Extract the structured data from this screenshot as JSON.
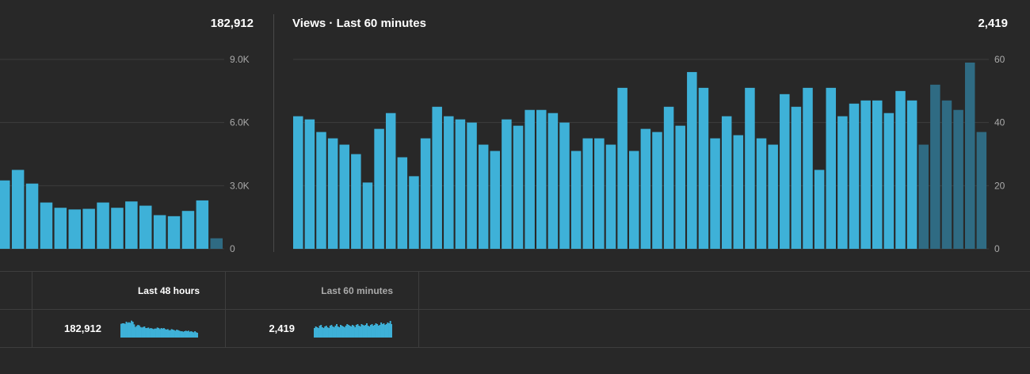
{
  "charts": {
    "left": {
      "total": "182,912"
    },
    "right": {
      "title": "Views · Last 60 minutes",
      "total": "2,419"
    }
  },
  "table": {
    "tabs": [
      {
        "label": "Last 48 hours",
        "active": true
      },
      {
        "label": "Last 60 minutes",
        "active": false
      }
    ],
    "row": {
      "values": [
        "182,912",
        "2,419"
      ]
    }
  },
  "colors": {
    "bar": "#3eb1d8",
    "bar_dim": "#2f6b83",
    "grid": "#3c3c3c",
    "tick": "#aaaaaa",
    "background": "#282828"
  },
  "chart_data": [
    {
      "type": "bar",
      "title": "",
      "ylim": [
        0,
        9000
      ],
      "yticks": [
        "9.0K",
        "6.0K",
        "3.0K",
        "0"
      ],
      "grid": true,
      "values": [
        3250,
        3750,
        3100,
        2200,
        1950,
        1870,
        1900,
        2200,
        1950,
        2250,
        2050,
        1600,
        1550,
        1800,
        2300,
        500
      ],
      "highlight_last": 1
    },
    {
      "type": "bar",
      "title": "Views · Last 60 minutes",
      "ylim": [
        0,
        60
      ],
      "yticks": [
        "60",
        "40",
        "20",
        "0"
      ],
      "grid": true,
      "values": [
        42,
        41,
        37,
        35,
        33,
        30,
        21,
        38,
        43,
        29,
        23,
        35,
        45,
        42,
        41,
        40,
        33,
        31,
        41,
        39,
        44,
        44,
        43,
        40,
        31,
        35,
        35,
        33,
        51,
        31,
        38,
        37,
        45,
        39,
        56,
        51,
        35,
        42,
        36,
        51,
        35,
        33,
        49,
        45,
        51,
        25,
        51,
        42,
        46,
        47,
        47,
        43,
        50,
        47,
        33,
        52,
        47,
        44,
        59,
        37
      ],
      "highlight_last": 6
    },
    {
      "type": "bar",
      "values": [
        26,
        27,
        27,
        26,
        30,
        28,
        29,
        28,
        32,
        30,
        25,
        20,
        22,
        24,
        23,
        20,
        19,
        20,
        21,
        18,
        18,
        19,
        17,
        18,
        17,
        16,
        17,
        17,
        19,
        18,
        16,
        18,
        17,
        18,
        16,
        15,
        16,
        14,
        14,
        16,
        15,
        14,
        13,
        15,
        14,
        13,
        12,
        12,
        11,
        12,
        13,
        12,
        13,
        11,
        12,
        11,
        10,
        12,
        10,
        9
      ]
    },
    {
      "type": "bar",
      "values": [
        12,
        14,
        13,
        12,
        15,
        16,
        13,
        12,
        14,
        15,
        13,
        12,
        15,
        16,
        14,
        13,
        15,
        17,
        14,
        13,
        16,
        15,
        14,
        13,
        15,
        17,
        16,
        15,
        14,
        16,
        15,
        13,
        16,
        17,
        15,
        14,
        17,
        16,
        15,
        16,
        18,
        15,
        14,
        16,
        17,
        15,
        16,
        18,
        17,
        15,
        16,
        19,
        17,
        18,
        16,
        17,
        19,
        18,
        21,
        17
      ]
    }
  ]
}
